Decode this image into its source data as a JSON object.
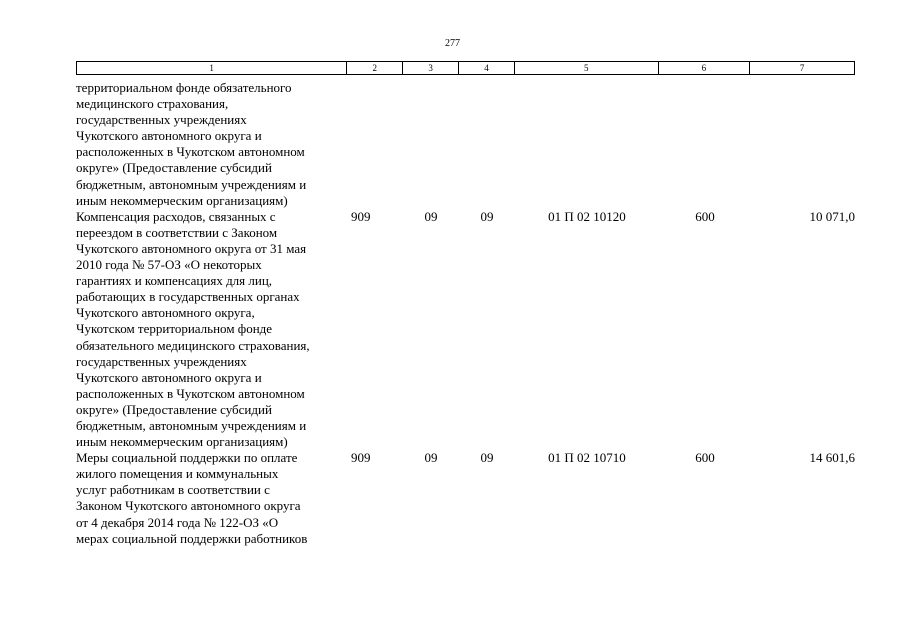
{
  "page_number": "277",
  "table": {
    "header": [
      "1",
      "2",
      "3",
      "4",
      "5",
      "6",
      "7"
    ],
    "rows": [
      {
        "name": "территориальном фонде обязательного\nмедицинского страхования,\nгосударственных учреждениях\nЧукотского автономного округа и\nрасположенных в Чукотском автономном\nокруге» (Предоставление субсидий\nбюджетным, автономным учреждениям и\nиным некоммерческим организациям)",
        "ministry": "",
        "section": "",
        "subsection": "",
        "target_article": "",
        "expense_type": "",
        "amount": ""
      },
      {
        "name": "Компенсация расходов, связанных с\nпереездом в соответствии с Законом\nЧукотского автономного округа от 31 мая\n2010 года № 57-ОЗ «О некоторых\nгарантиях и компенсациях для лиц,\nработающих в государственных органах\nЧукотского автономного округа,\nЧукотском территориальном фонде\nобязательного медицинского страхования,\nгосударственных учреждениях\nЧукотского автономного округа и\nрасположенных в Чукотском автономном\nокруге» (Предоставление субсидий\nбюджетным, автономным учреждениям и\nиным некоммерческим организациям)",
        "ministry": "909",
        "section": "09",
        "subsection": "09",
        "target_article": "01 П 02 10120",
        "expense_type": "600",
        "amount": "10 071,0"
      },
      {
        "name": "Меры социальной поддержки по оплате\nжилого помещения и коммунальных\nуслуг работникам в соответствии с\nЗаконом Чукотского автономного округа\nот 4 декабря 2014 года № 122-ОЗ «О\nмерах социальной поддержки работников",
        "ministry": "909",
        "section": "09",
        "subsection": "09",
        "target_article": "01 П 02 10710",
        "expense_type": "600",
        "amount": "14 601,6"
      }
    ]
  }
}
